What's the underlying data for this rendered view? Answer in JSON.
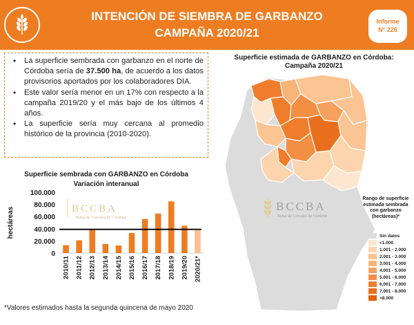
{
  "header": {
    "title_line1": "INTENCIÓN DE SIEMBRA DE GARBANZO",
    "title_line2": "CAMPAÑA 2020/21",
    "badge_line1": "Informe",
    "badge_line2": "N° 226",
    "bg_color": "#ee7d22"
  },
  "bullets": [
    {
      "pre": "La superficie sembrada con garbanzo en el norte de Córdoba sería de ",
      "bold": "37.500 ha",
      "post": ", de acuerdo a los datos provisorios aportados por los colaboradores DIA."
    },
    {
      "pre": "Este valor sería menor en un 17% con respecto a la campaña 2019/20 y el más bajo de los últimos 4 años.",
      "bold": "",
      "post": ""
    },
    {
      "pre": "La superficie sería muy cercana al promedio histórico de la provincia (2010-2020).",
      "bold": "",
      "post": ""
    }
  ],
  "chart_data": {
    "type": "bar",
    "title": "Superficie sembrada con GARBANZO en Córdoba",
    "subtitle": "Variación interanual",
    "ylabel": "hectáreas",
    "ylim": [
      0,
      100000
    ],
    "yticks": [
      "0",
      "20.000",
      "40.000",
      "60.000",
      "80.000",
      "100.000"
    ],
    "yticks_values": [
      0,
      20000,
      40000,
      60000,
      80000,
      100000
    ],
    "categories": [
      "2010/11",
      "2011/12",
      "2012/13",
      "2013/14",
      "2014/15",
      "2015/16",
      "2016/17",
      "2017/18",
      "2018/19",
      "2019/20",
      "2020/21*"
    ],
    "values": [
      13000,
      21000,
      39000,
      15000,
      12500,
      33000,
      56000,
      65000,
      85000,
      45000,
      37500
    ],
    "colors": [
      "#ee7d22",
      "#ee7d22",
      "#ee7d22",
      "#ee7d22",
      "#ee7d22",
      "#ee7d22",
      "#ee7d22",
      "#ee7d22",
      "#ee7d22",
      "#ee7d22",
      "#fbbf8e"
    ],
    "average_line": 39000,
    "watermark": "BCCBA",
    "watermark_sub": "Bolsa de Cereales de Córdoba"
  },
  "footnote": "*Valores estimados hasta la segunda quincena de mayo 2020",
  "map": {
    "title_line1": "Superficie estimada de GARBANZO en Córdoba:",
    "title_line2": "Campaña 2020/21",
    "watermark": "BCCBA",
    "watermark_sub": "Bolsa de Cereales de Córdoba"
  },
  "legend": {
    "title": "Rango de superficie estimada sembrada con garbanzo (hectáreas)*",
    "items": [
      {
        "label": "Sin datos",
        "color": "#dcdcdc"
      },
      {
        "label": "<1.000",
        "color": "#fde6cf"
      },
      {
        "label": "1.001 - 2.000",
        "color": "#fcd5ae"
      },
      {
        "label": "2.001 - 3.000",
        "color": "#fbc493"
      },
      {
        "label": "3.001 - 4.000",
        "color": "#f9b47a"
      },
      {
        "label": "4.001 - 5.000",
        "color": "#f6a160"
      },
      {
        "label": "5.001 - 6.000",
        "color": "#f38e45"
      },
      {
        "label": "6.001 - 7.000",
        "color": "#ef7d2c"
      },
      {
        "label": "7.001 - 8.000",
        "color": "#e96f1c"
      },
      {
        "label": ">8.000",
        "color": "#e0620f"
      }
    ]
  }
}
